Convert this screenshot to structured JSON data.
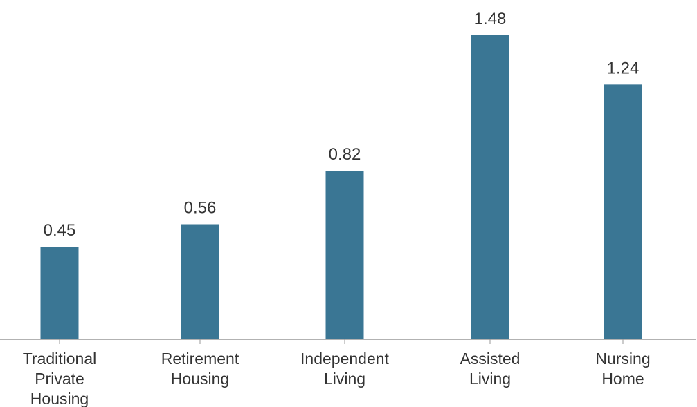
{
  "chart_data": {
    "type": "bar",
    "categories": [
      [
        "Traditional",
        "Private",
        "Housing"
      ],
      [
        "Retirement",
        "Housing"
      ],
      [
        "Independent",
        "Living"
      ],
      [
        "Assisted",
        "Living"
      ],
      [
        "Nursing",
        "Home"
      ]
    ],
    "values": [
      0.45,
      0.56,
      0.82,
      1.48,
      1.24
    ],
    "value_labels": [
      "0.45",
      "0.56",
      "0.82",
      "1.48",
      "1.24"
    ],
    "ylim": [
      0,
      1.48
    ],
    "grid": false,
    "bar_color": "#3a7694",
    "axis_color": "#999999"
  }
}
